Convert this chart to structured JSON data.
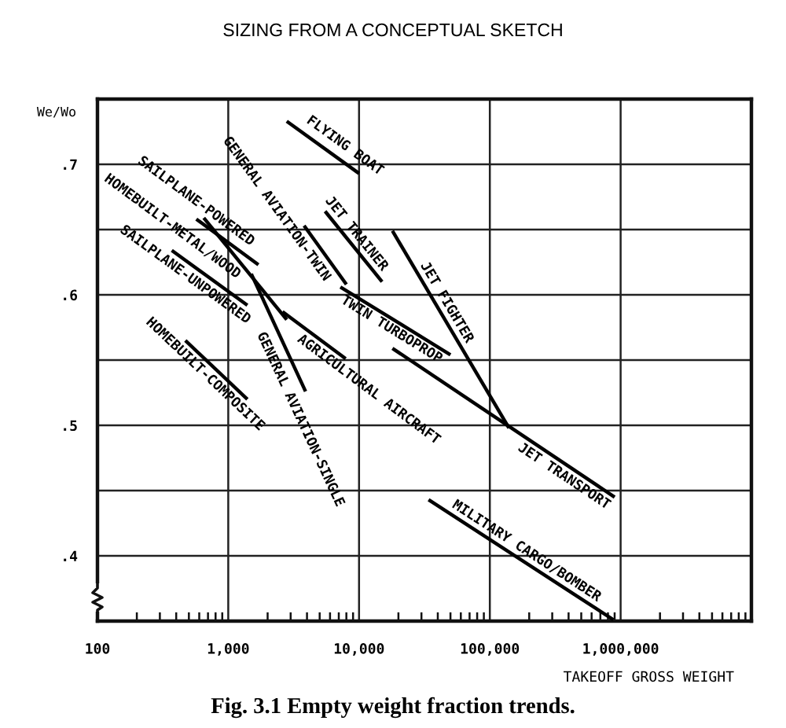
{
  "chart_data": {
    "type": "line",
    "title": "SIZING FROM A CONCEPTUAL SKETCH",
    "xlabel": "TAKEOFF GROSS WEIGHT",
    "ylabel": "We/Wo",
    "annotations": [
      "Fig. 3.1 Empty weight fraction trends."
    ],
    "series": [
      {
        "name": "FLYING BOAT",
        "color": "#000000",
        "x": [
          2800,
          10000
        ],
        "values": [
          0.733,
          0.693
        ]
      },
      {
        "name": "JET TRAINER",
        "color": "#000000",
        "x": [
          5500,
          15000
        ],
        "values": [
          0.664,
          0.61
        ]
      },
      {
        "name": "JET FIGHTER",
        "color": "#000000",
        "x": [
          18000,
          140000
        ],
        "values": [
          0.649,
          0.498
        ]
      },
      {
        "name": "JET TRANSPORT",
        "color": "#000000",
        "x": [
          18000,
          900000
        ],
        "values": [
          0.559,
          0.445
        ]
      },
      {
        "name": "MILITARY CARGO/BOMBER",
        "color": "#000000",
        "x": [
          34000,
          880000
        ],
        "values": [
          0.443,
          0.351
        ]
      },
      {
        "name": "TWIN TURBOPROP",
        "color": "#000000",
        "x": [
          7200,
          50000
        ],
        "values": [
          0.606,
          0.554
        ]
      },
      {
        "name": "GENERAL AVIATION-TWIN",
        "color": "#000000",
        "x": [
          3800,
          8000
        ],
        "values": [
          0.653,
          0.608
        ]
      },
      {
        "name": "SAILPLANE-POWERED",
        "color": "#000000",
        "x": [
          570,
          1700
        ],
        "values": [
          0.658,
          0.623
        ]
      },
      {
        "name": "HOMEBUILT-METAL/WOOD",
        "color": "#000000",
        "x": [
          650,
          2800
        ],
        "values": [
          0.659,
          0.581
        ]
      },
      {
        "name": "SAILPLANE-UNPOWERED",
        "color": "#000000",
        "x": [
          370,
          1400
        ],
        "values": [
          0.634,
          0.592
        ]
      },
      {
        "name": "HOMEBUILT-COMPOSITE",
        "color": "#000000",
        "x": [
          470,
          1400
        ],
        "values": [
          0.565,
          0.52
        ]
      },
      {
        "name": "GENERAL AVIATION-SINGLE",
        "color": "#000000",
        "x": [
          1500,
          3900
        ],
        "values": [
          0.616,
          0.526
        ]
      },
      {
        "name": "AGRICULTURAL AIRCRAFT",
        "color": "#000000",
        "x": [
          2600,
          7900
        ],
        "values": [
          0.587,
          0.551
        ]
      }
    ],
    "log": "x",
    "xlim": [
      100,
      10000000
    ],
    "ylim": [
      0.35,
      0.75
    ],
    "xticks": [
      100,
      {
        "value": 1000,
        "label": "1,000"
      },
      {
        "value": 10000,
        "label": "10,000"
      },
      {
        "value": 100000,
        "label": "100,000"
      },
      {
        "value": 1000000,
        "label": "1,000,000"
      },
      {
        "value": 10000000,
        "label": null
      }
    ],
    "yticks": [
      {
        "value": 0.4,
        "label": ".4"
      },
      {
        "value": 0.45,
        "label": null
      },
      {
        "value": 0.5,
        "label": ".5"
      },
      {
        "value": 0.55,
        "label": null
      },
      {
        "value": 0.6,
        "label": ".6"
      },
      {
        "value": 0.65,
        "label": null
      },
      {
        "value": 0.7,
        "label": ".7"
      }
    ],
    "grid": true,
    "marker": "none",
    "line_style": "solid"
  }
}
